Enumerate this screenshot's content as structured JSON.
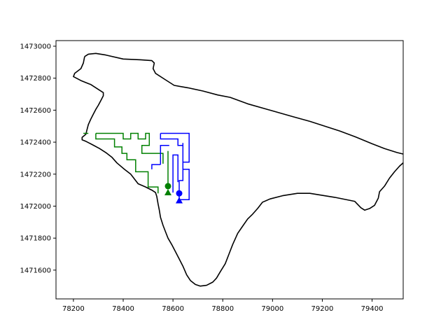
{
  "chart_data": {
    "type": "line",
    "title": "",
    "xlabel": "",
    "ylabel": "",
    "xlim": [
      78130,
      79525
    ],
    "ylim": [
      1471420,
      1473035
    ],
    "grid": false,
    "x_ticks": [
      78200,
      78400,
      78600,
      78800,
      79000,
      79200,
      79400
    ],
    "y_ticks": [
      1471600,
      1471800,
      1472000,
      1472200,
      1472400,
      1472600,
      1472800,
      1473000
    ],
    "colors": {
      "boundary": "#000000",
      "series_green": "#008000",
      "series_blue": "#0000ff"
    },
    "boundary": {
      "points": [
        [
          78245,
          1472935
        ],
        [
          78260,
          1472950
        ],
        [
          78290,
          1472955
        ],
        [
          78330,
          1472945
        ],
        [
          78400,
          1472920
        ],
        [
          78470,
          1472915
        ],
        [
          78515,
          1472910
        ],
        [
          78525,
          1472895
        ],
        [
          78520,
          1472860
        ],
        [
          78530,
          1472830
        ],
        [
          78570,
          1472790
        ],
        [
          78605,
          1472755
        ],
        [
          78660,
          1472740
        ],
        [
          78720,
          1472720
        ],
        [
          78780,
          1472695
        ],
        [
          78830,
          1472680
        ],
        [
          78900,
          1472640
        ],
        [
          78990,
          1472600
        ],
        [
          79080,
          1472560
        ],
        [
          79150,
          1472530
        ],
        [
          79270,
          1472470
        ],
        [
          79330,
          1472435
        ],
        [
          79400,
          1472390
        ],
        [
          79450,
          1472360
        ],
        [
          79500,
          1472335
        ],
        [
          79540,
          1472320
        ],
        [
          79550,
          1472305
        ],
        [
          79535,
          1472285
        ],
        [
          79510,
          1472250
        ],
        [
          79490,
          1472215
        ],
        [
          79470,
          1472175
        ],
        [
          79450,
          1472125
        ],
        [
          79430,
          1472090
        ],
        [
          79425,
          1472050
        ],
        [
          79410,
          1472005
        ],
        [
          79390,
          1471985
        ],
        [
          79370,
          1471975
        ],
        [
          79355,
          1471990
        ],
        [
          79330,
          1472030
        ],
        [
          79250,
          1472055
        ],
        [
          79150,
          1472080
        ],
        [
          79100,
          1472080
        ],
        [
          79040,
          1472065
        ],
        [
          78990,
          1472045
        ],
        [
          78960,
          1472025
        ],
        [
          78940,
          1471985
        ],
        [
          78920,
          1471950
        ],
        [
          78900,
          1471920
        ],
        [
          78880,
          1471875
        ],
        [
          78860,
          1471830
        ],
        [
          78850,
          1471795
        ],
        [
          78840,
          1471760
        ],
        [
          78825,
          1471700
        ],
        [
          78810,
          1471640
        ],
        [
          78790,
          1471590
        ],
        [
          78775,
          1471550
        ],
        [
          78760,
          1471525
        ],
        [
          78735,
          1471505
        ],
        [
          78710,
          1471500
        ],
        [
          78690,
          1471510
        ],
        [
          78670,
          1471535
        ],
        [
          78655,
          1471570
        ],
        [
          78640,
          1471625
        ],
        [
          78625,
          1471670
        ],
        [
          78610,
          1471715
        ],
        [
          78595,
          1471760
        ],
        [
          78580,
          1471800
        ],
        [
          78570,
          1471840
        ],
        [
          78560,
          1471880
        ],
        [
          78550,
          1471930
        ],
        [
          78545,
          1471975
        ],
        [
          78540,
          1472015
        ],
        [
          78535,
          1472060
        ],
        [
          78530,
          1472085
        ],
        [
          78515,
          1472100
        ],
        [
          78490,
          1472120
        ],
        [
          78460,
          1472140
        ],
        [
          78445,
          1472170
        ],
        [
          78430,
          1472200
        ],
        [
          78405,
          1472230
        ],
        [
          78375,
          1472270
        ],
        [
          78355,
          1472305
        ],
        [
          78330,
          1472335
        ],
        [
          78305,
          1472360
        ],
        [
          78275,
          1472385
        ],
        [
          78250,
          1472405
        ],
        [
          78235,
          1472415
        ],
        [
          78235,
          1472430
        ],
        [
          78250,
          1472450
        ],
        [
          78255,
          1472480
        ],
        [
          78260,
          1472510
        ],
        [
          78270,
          1472545
        ],
        [
          78280,
          1472575
        ],
        [
          78290,
          1472605
        ],
        [
          78300,
          1472630
        ],
        [
          78310,
          1472660
        ],
        [
          78320,
          1472690
        ],
        [
          78320,
          1472710
        ],
        [
          78300,
          1472730
        ],
        [
          78270,
          1472760
        ],
        [
          78230,
          1472785
        ],
        [
          78200,
          1472810
        ],
        [
          78205,
          1472830
        ],
        [
          78230,
          1472860
        ],
        [
          78240,
          1472895
        ],
        [
          78245,
          1472935
        ]
      ]
    },
    "series": [
      {
        "color": "#008000",
        "lines": [
          [
            [
              78240,
              1472455
            ],
            [
              78260,
              1472455
            ]
          ],
          [
            [
              78290,
              1472455
            ],
            [
              78400,
              1472455
            ],
            [
              78400,
              1472420
            ],
            [
              78430,
              1472420
            ],
            [
              78430,
              1472455
            ],
            [
              78460,
              1472455
            ],
            [
              78460,
              1472420
            ],
            [
              78490,
              1472420
            ],
            [
              78490,
              1472455
            ],
            [
              78505,
              1472455
            ],
            [
              78505,
              1472380
            ],
            [
              78475,
              1472380
            ],
            [
              78475,
              1472330
            ],
            [
              78560,
              1472330
            ],
            [
              78560,
              1472265
            ]
          ],
          [
            [
              78580,
              1472120
            ],
            [
              78580,
              1472345
            ]
          ],
          [
            [
              78290,
              1472455
            ],
            [
              78290,
              1472420
            ],
            [
              78365,
              1472420
            ],
            [
              78365,
              1472370
            ],
            [
              78395,
              1472370
            ],
            [
              78395,
              1472330
            ],
            [
              78415,
              1472330
            ],
            [
              78415,
              1472290
            ],
            [
              78450,
              1472290
            ],
            [
              78450,
              1472215
            ],
            [
              78500,
              1472215
            ],
            [
              78500,
              1472120
            ],
            [
              78540,
              1472120
            ],
            [
              78540,
              1472080
            ]
          ]
        ],
        "markers": [
          {
            "shape": "circle",
            "x": 78580,
            "y": 1472125
          },
          {
            "shape": "triangle",
            "x": 78580,
            "y": 1472085
          }
        ]
      },
      {
        "color": "#0000ff",
        "lines": [
          [
            [
              78550,
              1472455
            ],
            [
              78665,
              1472455
            ],
            [
              78665,
              1472275
            ],
            [
              78640,
              1472275
            ],
            [
              78640,
              1472230
            ],
            [
              78665,
              1472230
            ],
            [
              78665,
              1472040
            ],
            [
              78625,
              1472040
            ],
            [
              78625,
              1472160
            ],
            [
              78640,
              1472160
            ],
            [
              78640,
              1472395
            ]
          ],
          [
            [
              78550,
              1472455
            ],
            [
              78550,
              1472420
            ],
            [
              78620,
              1472420
            ],
            [
              78620,
              1472380
            ],
            [
              78640,
              1472380
            ]
          ],
          [
            [
              78600,
              1472085
            ],
            [
              78600,
              1472320
            ],
            [
              78620,
              1472320
            ],
            [
              78620,
              1472300
            ]
          ],
          [
            [
              78620,
              1472300
            ],
            [
              78620,
              1472285
            ],
            [
              78620,
              1472150
            ]
          ],
          [
            [
              78550,
              1472260
            ],
            [
              78550,
              1472380
            ],
            [
              78585,
              1472380
            ]
          ],
          [
            [
              78515,
              1472230
            ],
            [
              78515,
              1472260
            ],
            [
              78550,
              1472260
            ]
          ]
        ],
        "markers": [
          {
            "shape": "circle",
            "x": 78625,
            "y": 1472080
          },
          {
            "shape": "triangle",
            "x": 78625,
            "y": 1472035
          }
        ]
      }
    ]
  }
}
